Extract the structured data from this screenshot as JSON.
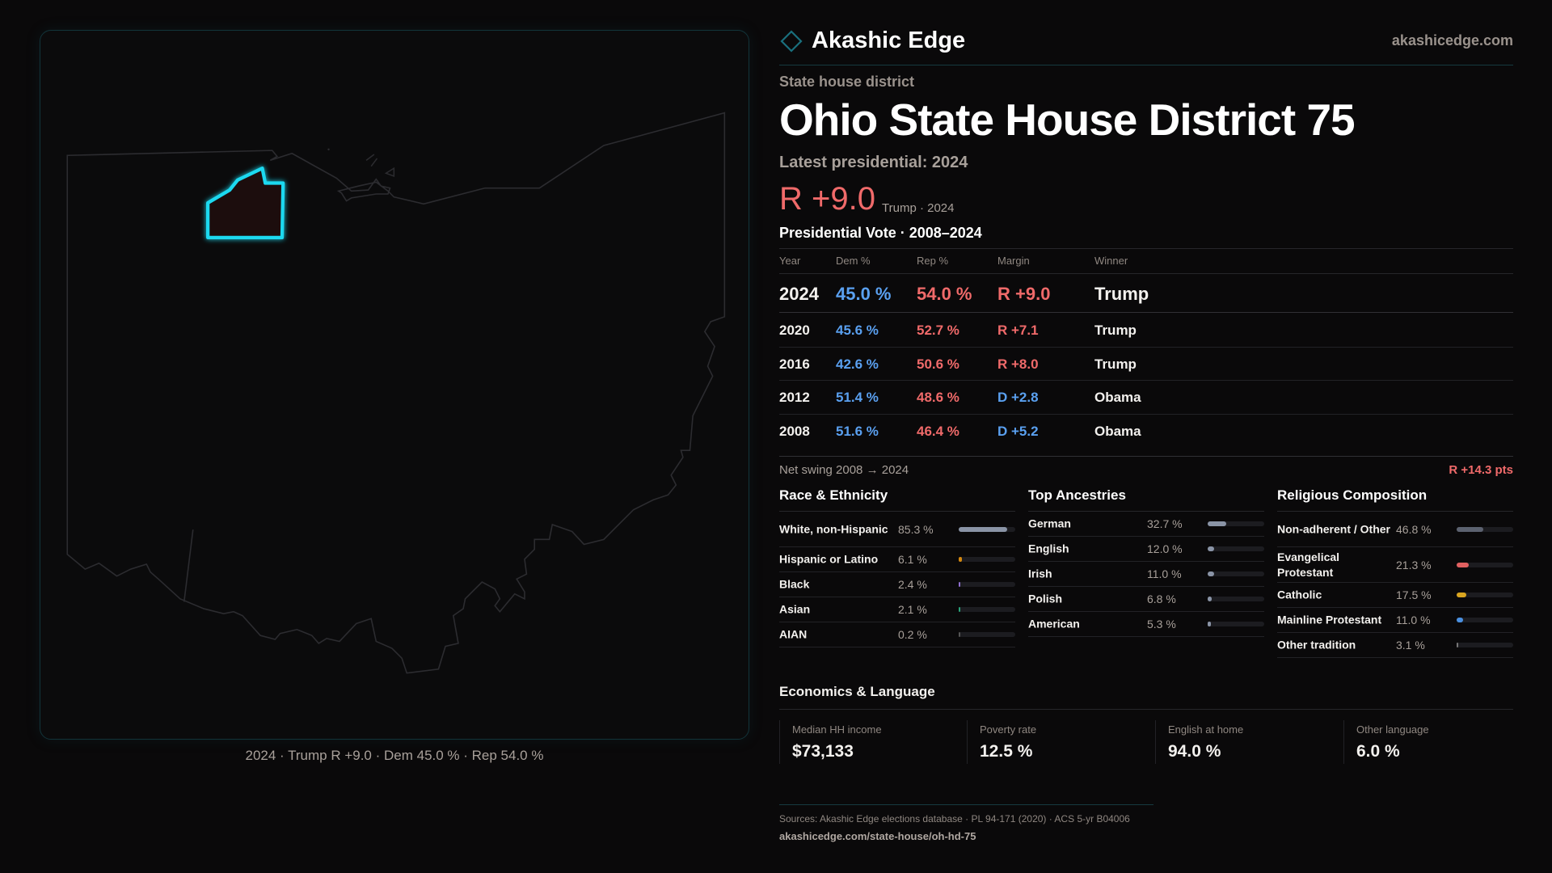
{
  "map": {
    "caption": "2024 · Trump R +9.0 · Dem 45.0 % · Rep 54.0 %",
    "highlight_color": "#1ad9f0",
    "district_fill": "#1e0e10"
  },
  "header": {
    "brand": "Akashic Edge",
    "site": "akashicedge.com",
    "logo_icon": "diamond-icon"
  },
  "kicker": "State house district",
  "title": "Ohio State House District 75",
  "latest": "Latest presidential: 2024",
  "margin": {
    "value": "R +9.0",
    "sub": "Trump · 2024"
  },
  "vote_table": {
    "title": "Presidential Vote · 2008–2024",
    "headers": [
      "Year",
      "Dem %",
      "Rep %",
      "Margin",
      "Winner"
    ],
    "rows": [
      {
        "year": "2024",
        "dem": "45.0 %",
        "rep": "54.0 %",
        "margin": "R +9.0",
        "party": "R",
        "winner": "Trump"
      },
      {
        "year": "2020",
        "dem": "45.6 %",
        "rep": "52.7 %",
        "margin": "R +7.1",
        "party": "R",
        "winner": "Trump"
      },
      {
        "year": "2016",
        "dem": "42.6 %",
        "rep": "50.6 %",
        "margin": "R +8.0",
        "party": "R",
        "winner": "Trump"
      },
      {
        "year": "2012",
        "dem": "51.4 %",
        "rep": "48.6 %",
        "margin": "D +2.8",
        "party": "D",
        "winner": "Obama"
      },
      {
        "year": "2008",
        "dem": "51.6 %",
        "rep": "46.4 %",
        "margin": "D +5.2",
        "party": "D",
        "winner": "Obama"
      }
    ],
    "swing_label": "Net swing 2008 → 2024",
    "swing_value": "R +14.3 pts"
  },
  "race": {
    "title": "Race & Ethnicity",
    "items": [
      {
        "label": "White, non-Hispanic",
        "value": "85.3 %",
        "pct": 85.3,
        "color": "#8a94a6"
      },
      {
        "label": "Hispanic or Latino",
        "value": "6.1 %",
        "pct": 6.1,
        "color": "#d4880f"
      },
      {
        "label": "Black",
        "value": "2.4 %",
        "pct": 2.4,
        "color": "#8f6fd0"
      },
      {
        "label": "Asian",
        "value": "2.1 %",
        "pct": 2.1,
        "color": "#2aa37a"
      },
      {
        "label": "AIAN",
        "value": "0.2 %",
        "pct": 0.2,
        "color": "#555"
      }
    ]
  },
  "ancestry": {
    "title": "Top Ancestries",
    "items": [
      {
        "label": "German",
        "value": "32.7 %",
        "pct": 32.7,
        "color": "#8a94a6"
      },
      {
        "label": "English",
        "value": "12.0 %",
        "pct": 12.0,
        "color": "#8a94a6"
      },
      {
        "label": "Irish",
        "value": "11.0 %",
        "pct": 11.0,
        "color": "#8a94a6"
      },
      {
        "label": "Polish",
        "value": "6.8 %",
        "pct": 6.8,
        "color": "#8a94a6"
      },
      {
        "label": "American",
        "value": "5.3 %",
        "pct": 5.3,
        "color": "#8a94a6"
      }
    ]
  },
  "religion": {
    "title": "Religious Composition",
    "items": [
      {
        "label": "Non-adherent / Other",
        "value": "46.8 %",
        "pct": 46.8,
        "color": "#5c6270"
      },
      {
        "label": "Evangelical Protestant",
        "value": "21.3 %",
        "pct": 21.3,
        "color": "#e06060"
      },
      {
        "label": "Catholic",
        "value": "17.5 %",
        "pct": 17.5,
        "color": "#d9a520"
      },
      {
        "label": "Mainline Protestant",
        "value": "11.0 %",
        "pct": 11.0,
        "color": "#4a90e0"
      },
      {
        "label": "Other tradition",
        "value": "3.1 %",
        "pct": 3.1,
        "color": "#777777"
      }
    ]
  },
  "economics": {
    "title": "Economics & Language",
    "items": [
      {
        "label": "Median HH income",
        "value": "$73,133"
      },
      {
        "label": "Poverty rate",
        "value": "12.5 %"
      },
      {
        "label": "English at home",
        "value": "94.0 %"
      },
      {
        "label": "Other language",
        "value": "6.0 %"
      }
    ]
  },
  "footer": {
    "sources": "Sources: Akashic Edge elections database · PL 94-171 (2020) · ACS 5-yr B04006",
    "url": "akashicedge.com/state-house/oh-hd-75"
  },
  "colors": {
    "dem": "#5aa0f0",
    "rep": "#f06a6a",
    "background": "#0a090a"
  }
}
